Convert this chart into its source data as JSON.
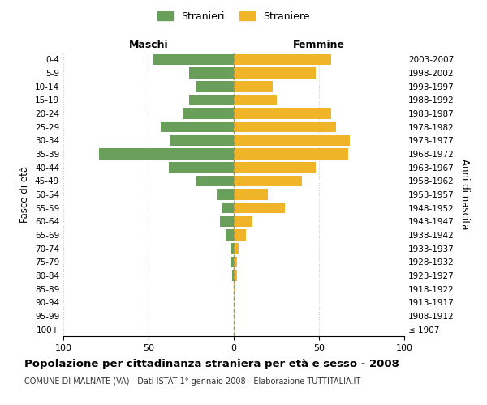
{
  "age_groups": [
    "100+",
    "95-99",
    "90-94",
    "85-89",
    "80-84",
    "75-79",
    "70-74",
    "65-69",
    "60-64",
    "55-59",
    "50-54",
    "45-49",
    "40-44",
    "35-39",
    "30-34",
    "25-29",
    "20-24",
    "15-19",
    "10-14",
    "5-9",
    "0-4"
  ],
  "birth_years": [
    "≤ 1907",
    "1908-1912",
    "1913-1917",
    "1918-1922",
    "1923-1927",
    "1928-1932",
    "1933-1937",
    "1938-1942",
    "1943-1947",
    "1948-1952",
    "1953-1957",
    "1958-1962",
    "1963-1967",
    "1968-1972",
    "1973-1977",
    "1978-1982",
    "1983-1987",
    "1988-1992",
    "1993-1997",
    "1998-2002",
    "2003-2007"
  ],
  "males": [
    0,
    0,
    0,
    0,
    1,
    2,
    2,
    5,
    8,
    7,
    10,
    22,
    38,
    79,
    37,
    43,
    30,
    26,
    22,
    26,
    47
  ],
  "females": [
    0,
    0,
    0,
    1,
    2,
    2,
    3,
    7,
    11,
    30,
    20,
    40,
    48,
    67,
    68,
    60,
    57,
    25,
    23,
    48,
    57
  ],
  "male_color": "#6a9f5b",
  "female_color": "#f0b429",
  "background_color": "#ffffff",
  "grid_color": "#cccccc",
  "title": "Popolazione per cittadinanza straniera per età e sesso - 2008",
  "subtitle": "COMUNE DI MALNATE (VA) - Dati ISTAT 1° gennaio 2008 - Elaborazione TUTTITALIA.IT",
  "xlabel_left": "Maschi",
  "xlabel_right": "Femmine",
  "ylabel_left": "Fasce di età",
  "ylabel_right": "Anni di nascita",
  "legend_male": "Stranieri",
  "legend_female": "Straniere",
  "xlim": 100
}
